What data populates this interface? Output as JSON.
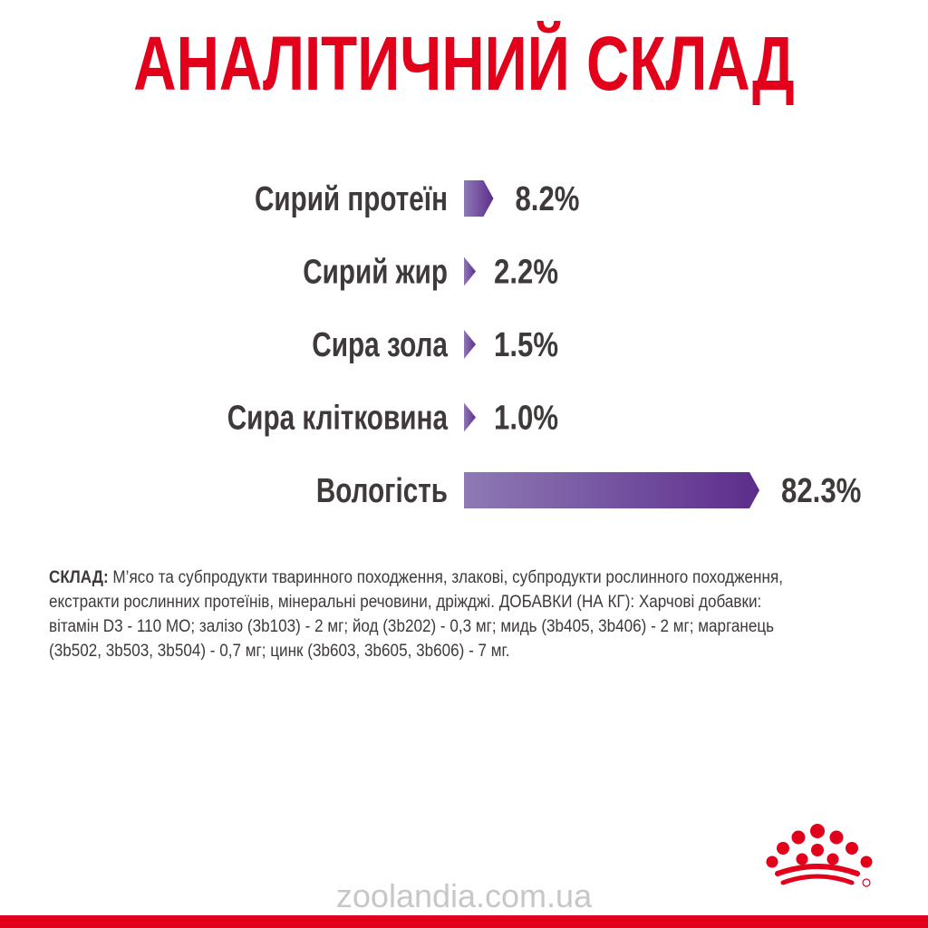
{
  "title": "АНАЛІТИЧНИЙ СКЛАД",
  "chart_data": {
    "type": "bar",
    "orientation": "horizontal",
    "categories": [
      "Сирий протеїн",
      "Сирий жир",
      "Сира зола",
      "Сира клітковина",
      "Вологість"
    ],
    "values": [
      8.2,
      2.2,
      1.5,
      1.0,
      82.3
    ],
    "value_labels": [
      "8.2%",
      "2.2%",
      "1.5%",
      "1.0%",
      "82.3%"
    ],
    "unit": "%",
    "grid": false,
    "legend": "none",
    "colors": {
      "bar_start": "#8e7ab5",
      "bar_end": "#5c2d8c",
      "label": "#3f3a39"
    }
  },
  "composition": {
    "label": "СКЛАД:",
    "text": " М’ясо та субпродукти тваринного походження, злакові, субпродукти рослинного походження, екстракти рослинних протеїнів, мінеральні речовини, дріжджі. ДОБАВКИ (НА КГ): Харчові добавки: вітамін D3 - 110 МО; залізо (3b103) - 2 мг; йод (3b202) - 0,3 мг; мидь (3b405, 3b406) - 2 мг; марганець (3b502, 3b503, 3b504) - 0,7 мг; цинк (3b603, 3b605, 3b606) - 7 мг."
  },
  "logo": {
    "icon": "royal-crown-icon",
    "color": "#e2001a"
  },
  "watermark": "zoolandia.com.ua",
  "colors": {
    "brand_red": "#e2001a",
    "text": "#3f3a39"
  }
}
